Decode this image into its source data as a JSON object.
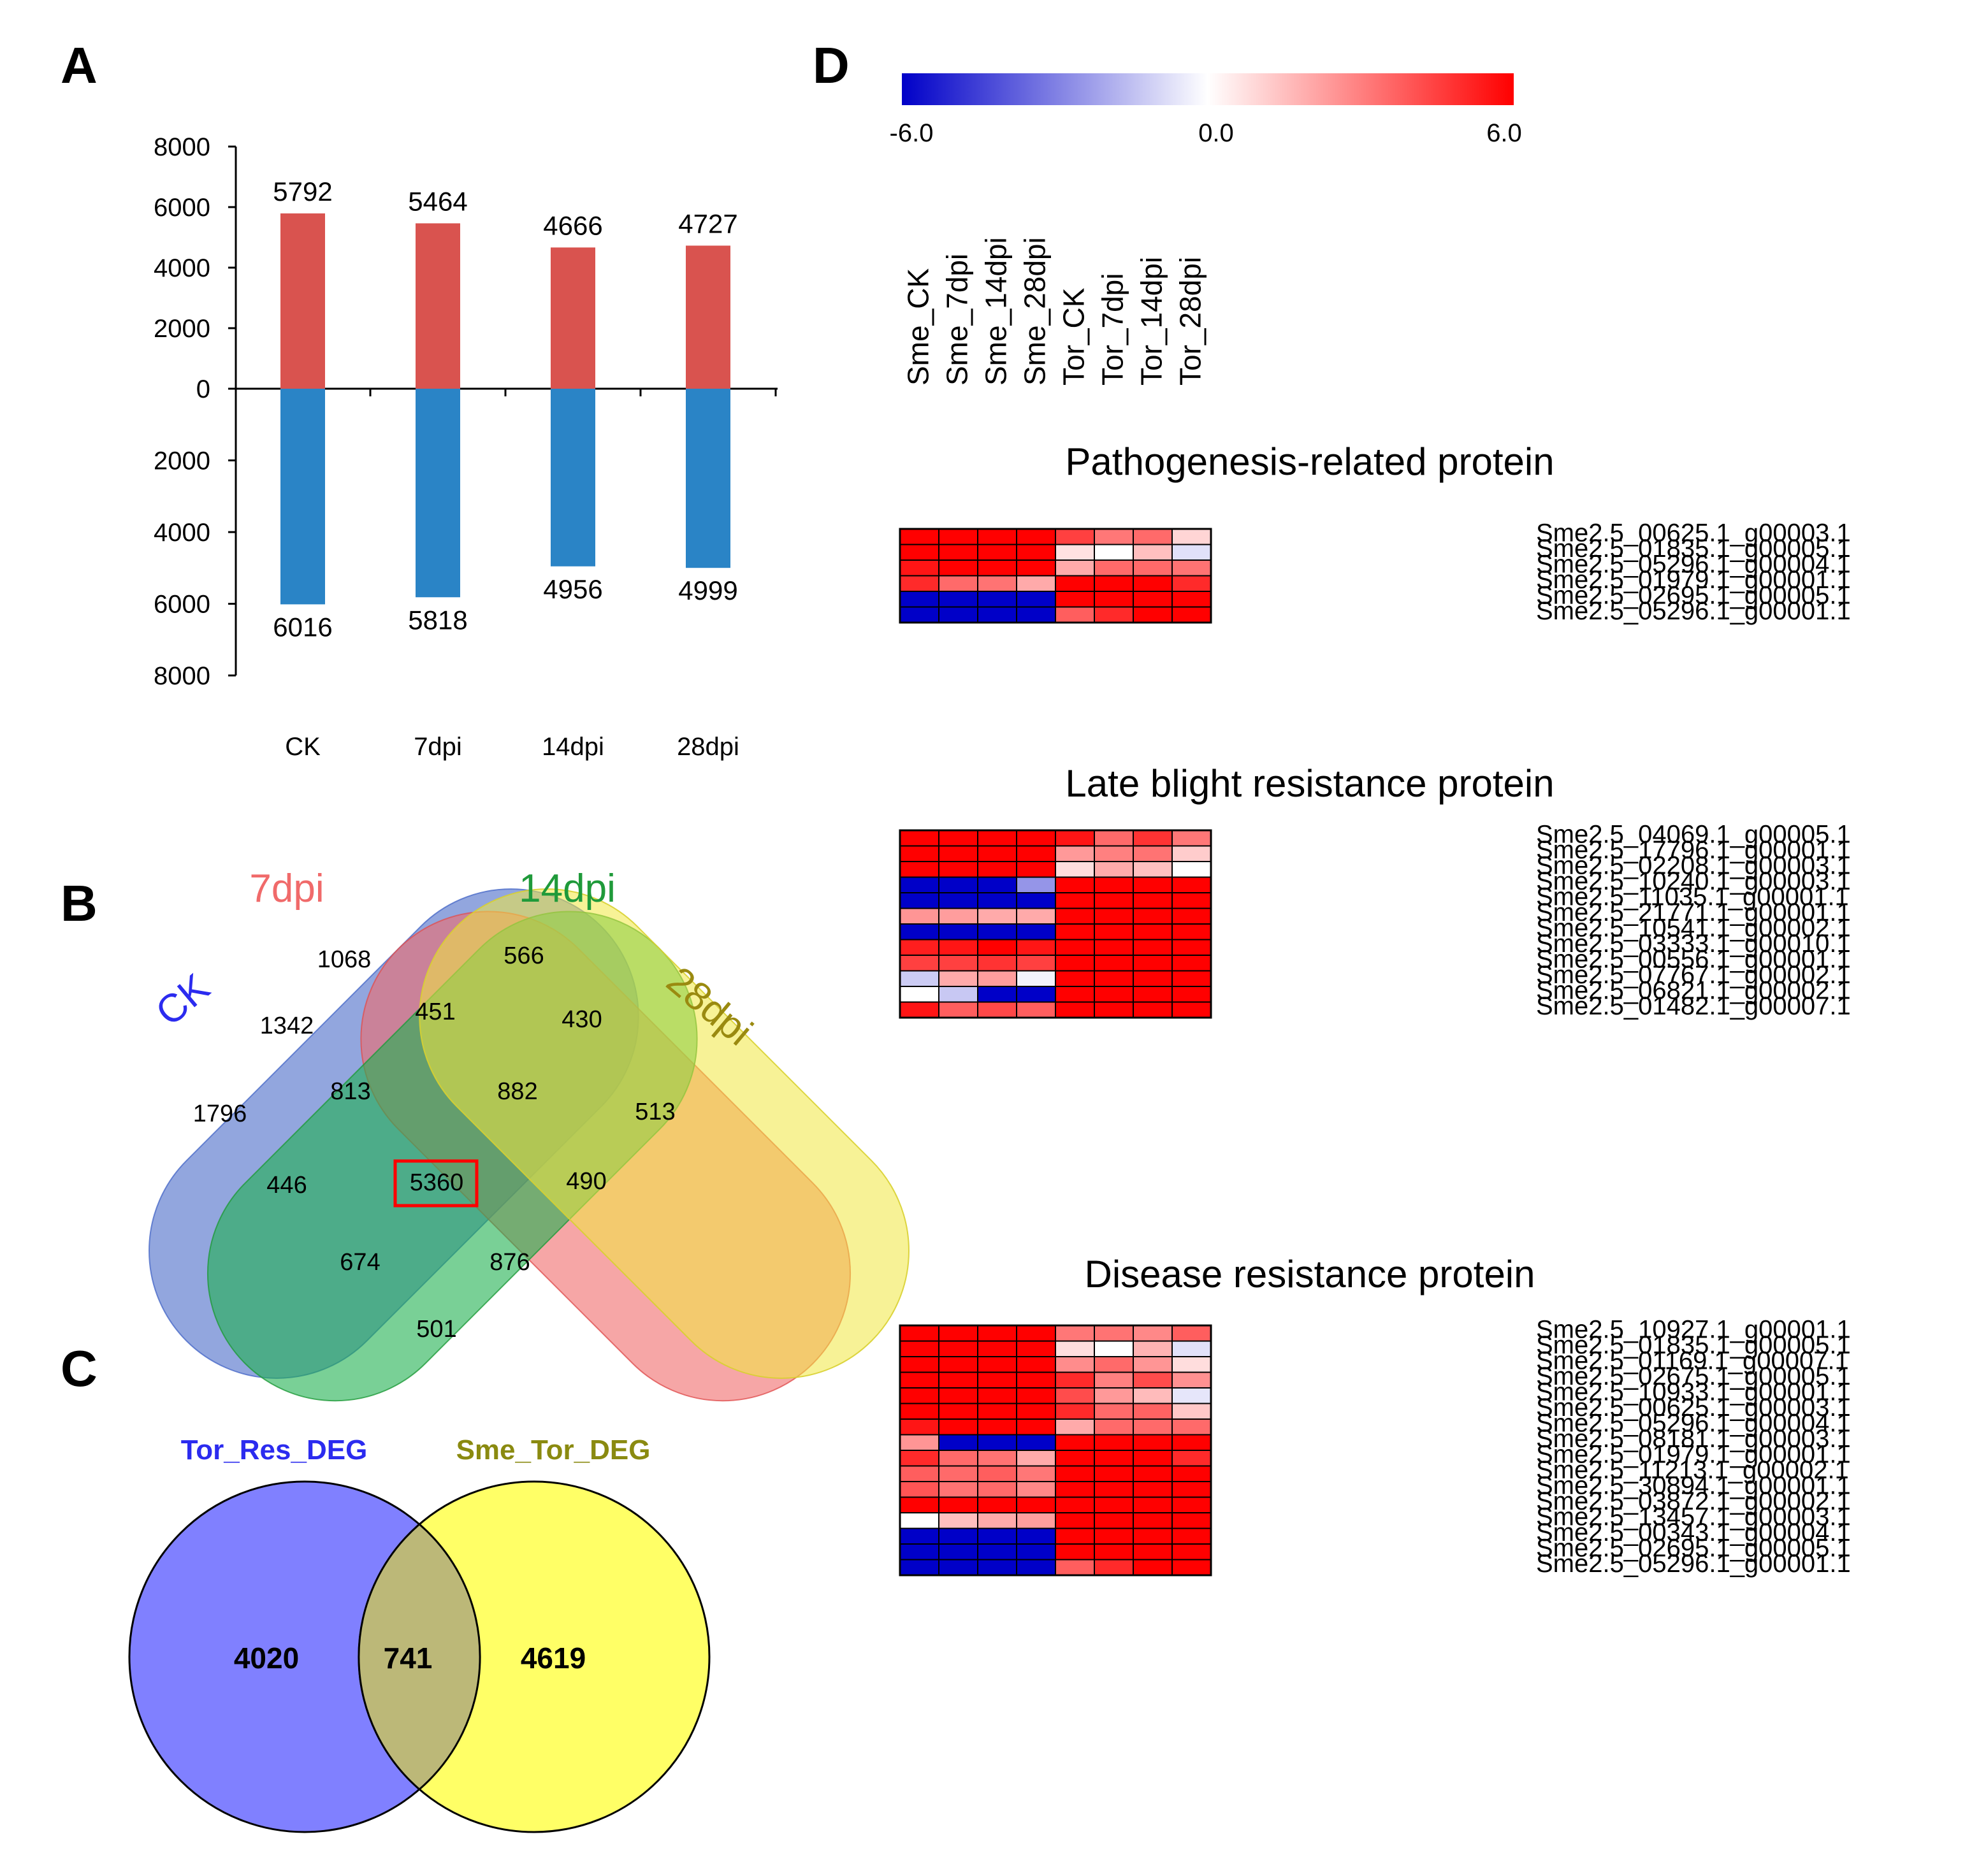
{
  "panels": {
    "a": "A",
    "b": "B",
    "c": "C",
    "d": "D"
  },
  "chart_data": [
    {
      "type": "bar",
      "panel": "A",
      "categories": [
        "CK",
        "7dpi",
        "14dpi",
        "28dpi"
      ],
      "series": [
        {
          "name": "up",
          "color": "#d9534f",
          "values": [
            5792,
            5464,
            4666,
            4727
          ]
        },
        {
          "name": "down",
          "color": "#2a84c6",
          "values": [
            6016,
            5818,
            4956,
            4999
          ]
        }
      ],
      "y_ticks_up": [
        "8000",
        "6000",
        "4000",
        "2000",
        "0"
      ],
      "y_ticks_down": [
        "2000",
        "4000",
        "6000",
        "8000"
      ],
      "ylim": [
        -8000,
        8000
      ]
    },
    {
      "type": "venn",
      "panel": "B",
      "sets": [
        {
          "name": "CK",
          "color": "#4a6ac8"
        },
        {
          "name": "7dpi",
          "color": "#f06a6a"
        },
        {
          "name": "14dpi",
          "color": "#1f9a3a"
        },
        {
          "name": "28dpi",
          "color": "#9a8a10"
        }
      ],
      "regions": [
        {
          "sets": "CK",
          "value": "1796"
        },
        {
          "sets": "7dpi",
          "value": "1068"
        },
        {
          "sets": "14dpi",
          "value": "566"
        },
        {
          "sets": "28dpi",
          "value": "513"
        },
        {
          "sets": "CK&7dpi",
          "value": "1342"
        },
        {
          "sets": "7dpi&14dpi",
          "value": "451"
        },
        {
          "sets": "14dpi&28dpi",
          "value": "430"
        },
        {
          "sets": "CK&7dpi&14dpi",
          "value": "813"
        },
        {
          "sets": "7dpi&14dpi&28dpi",
          "value": "882"
        },
        {
          "sets": "CK&14dpi",
          "value": "446"
        },
        {
          "sets": "CK&7dpi&14dpi&28dpi",
          "value": "5360"
        },
        {
          "sets": "7dpi&28dpi",
          "value": "490"
        },
        {
          "sets": "CK&14dpi&28dpi",
          "value": "674"
        },
        {
          "sets": "CK&7dpi&28dpi",
          "value": "876"
        },
        {
          "sets": "CK&28dpi",
          "value": "501"
        }
      ]
    },
    {
      "type": "venn",
      "panel": "C",
      "sets": [
        {
          "name": "Tor_Res_DEG",
          "color": "#2b2bef",
          "only": "4020"
        },
        {
          "name": "Sme_Tor_DEG",
          "color": "#8a8a10",
          "only": "4619"
        }
      ],
      "overlap": "741"
    },
    {
      "type": "heatmap",
      "panel": "D",
      "color_scale": {
        "min": "-6.0",
        "mid": "0.0",
        "max": "6.0",
        "low": "#0000c8",
        "high": "#ff0000"
      },
      "columns": [
        "Sme_CK",
        "Sme_7dpi",
        "Sme_14dpi",
        "Sme_28dpi",
        "Tor_CK",
        "Tor_7dpi",
        "Tor_14dpi",
        "Tor_28dpi"
      ],
      "groups": [
        {
          "title": "Pathogenesis-related protein",
          "rows": [
            {
              "label": "Sme2.5_00625.1_g00003.1",
              "values": [
                6,
                6,
                6,
                6,
                4.5,
                3.2,
                3.5,
                1
              ]
            },
            {
              "label": "Sme2.5_01835.1_g00005.1",
              "values": [
                6,
                6,
                6,
                6,
                0.7,
                0,
                1.5,
                -0.7
              ]
            },
            {
              "label": "Sme2.5_05296.1_g00004.1",
              "values": [
                5.5,
                6,
                6,
                6,
                2,
                3.5,
                3.5,
                3.3
              ]
            },
            {
              "label": "Sme2.5_01979.1_g00001.1",
              "values": [
                5,
                3.5,
                3.3,
                2,
                6,
                6,
                6,
                5
              ]
            },
            {
              "label": "Sme2.5_02695.1_g00005.1",
              "values": [
                -6,
                -6,
                -6,
                -6,
                6,
                6,
                6,
                6
              ]
            },
            {
              "label": "Sme2.5_05296.1_g00001.1",
              "values": [
                -6,
                -6,
                -6,
                -6,
                3.8,
                5,
                6,
                6
              ]
            }
          ]
        },
        {
          "title": "Late blight resistance protein",
          "rows": [
            {
              "label": "Sme2.5_04069.1_g00005.1",
              "values": [
                6,
                6,
                6,
                6,
                5.5,
                3.5,
                4.8,
                3.2
              ]
            },
            {
              "label": "Sme2.5_17796.1_g00001.1",
              "values": [
                6,
                6,
                6,
                6,
                2.4,
                3,
                3.3,
                1.2
              ]
            },
            {
              "label": "Sme2.5_02208.1_g00003.1",
              "values": [
                6,
                6,
                6,
                6,
                0.8,
                2,
                1.5,
                0
              ]
            },
            {
              "label": "Sme2.5_10240.1_g00003.1",
              "values": [
                -6,
                -6,
                -6,
                -2.5,
                6,
                6,
                6,
                6
              ]
            },
            {
              "label": "Sme2.5_11035.1_g00001.1",
              "values": [
                -6,
                -6,
                -6,
                -6,
                6,
                6,
                6,
                6
              ]
            },
            {
              "label": "Sme2.5_21771.1_g00001.1",
              "values": [
                2.5,
                2.3,
                2,
                2,
                6,
                6,
                6,
                6
              ]
            },
            {
              "label": "Sme2.5_10541.1_g00002.1",
              "values": [
                -6,
                -6,
                -6,
                -6,
                6,
                6,
                6,
                6
              ]
            },
            {
              "label": "Sme2.5_03333.1_g00010.1",
              "values": [
                5.3,
                5.5,
                6,
                5.5,
                6,
                6,
                6,
                6
              ]
            },
            {
              "label": "Sme2.5_00556.1_g00001.1",
              "values": [
                4.5,
                4.5,
                4.8,
                4.5,
                6,
                6,
                6,
                6
              ]
            },
            {
              "label": "Sme2.5_07767.1_g00002.1",
              "values": [
                -1.2,
                2,
                2.3,
                -0.3,
                6,
                6,
                6,
                6
              ]
            },
            {
              "label": "Sme2.5_06821.1_g00002.1",
              "values": [
                0,
                -1.3,
                -6,
                -6,
                6,
                6,
                6,
                6
              ]
            },
            {
              "label": "Sme2.5_01482.1_g00007.1",
              "values": [
                5.5,
                3.8,
                4.3,
                3.8,
                6,
                6,
                6,
                6
              ]
            }
          ]
        },
        {
          "title": "Disease resistance protein",
          "rows": [
            {
              "label": "Sme2.5_10927.1_g00001.1",
              "values": [
                6,
                6,
                6,
                6,
                3.2,
                3.3,
                2.8,
                3.8
              ]
            },
            {
              "label": "Sme2.5_01835.1_g00005.1",
              "values": [
                6,
                6,
                6,
                6,
                0.8,
                0,
                1.8,
                -0.7
              ]
            },
            {
              "label": "Sme2.5_01169.1_g00007.1",
              "values": [
                6,
                6,
                6,
                6,
                2.7,
                3.5,
                2.5,
                0.8
              ]
            },
            {
              "label": "Sme2.5_02675.1_g00005.1",
              "values": [
                6,
                6,
                6,
                6,
                5,
                3,
                4.2,
                2.6
              ]
            },
            {
              "label": "Sme2.5_10933.1_g00001.1",
              "values": [
                6,
                6,
                6,
                6,
                4.2,
                2.4,
                1.6,
                -0.6
              ]
            },
            {
              "label": "Sme2.5_00625.1_g00003.1",
              "values": [
                6,
                6,
                6,
                6,
                5,
                3.5,
                3.7,
                1.3
              ]
            },
            {
              "label": "Sme2.5_05296.1_g00004.1",
              "values": [
                5.5,
                6,
                6,
                6,
                2,
                3.5,
                3.5,
                3.5
              ]
            },
            {
              "label": "Sme2.5_08181.1_g00003.1",
              "values": [
                2.5,
                -6,
                -6,
                -6,
                6,
                6,
                6,
                6
              ]
            },
            {
              "label": "Sme2.5_01979.1_g00001.1",
              "values": [
                5,
                3.5,
                3.3,
                2,
                6,
                6,
                6,
                5
              ]
            },
            {
              "label": "Sme2.5_11213.1_g00002.1",
              "values": [
                3.8,
                3.5,
                3.8,
                3.2,
                6,
                6,
                6,
                6
              ]
            },
            {
              "label": "Sme2.5_30894.1_g00001.1",
              "values": [
                4,
                3.3,
                3.5,
                2.8,
                6,
                6,
                6,
                6
              ]
            },
            {
              "label": "Sme2.5_03872.1_g00002.1",
              "values": [
                6,
                6,
                6,
                6,
                6,
                6,
                6,
                6
              ]
            },
            {
              "label": "Sme2.5_13457.1_g00003.1",
              "values": [
                0,
                1.5,
                2,
                2.3,
                6,
                6,
                6,
                6
              ]
            },
            {
              "label": "Sme2.5_00343.1_g00004.1",
              "values": [
                -6,
                -6,
                -6,
                -6,
                6,
                6,
                6,
                6
              ]
            },
            {
              "label": "Sme2.5_02695.1_g00005.1",
              "values": [
                -6,
                -6,
                -6,
                -6,
                6,
                6,
                6,
                6
              ]
            },
            {
              "label": "Sme2.5_05296.1_g00001.1",
              "values": [
                -6,
                -6,
                -6,
                -6,
                3.8,
                5,
                6,
                6
              ]
            }
          ]
        }
      ]
    }
  ]
}
